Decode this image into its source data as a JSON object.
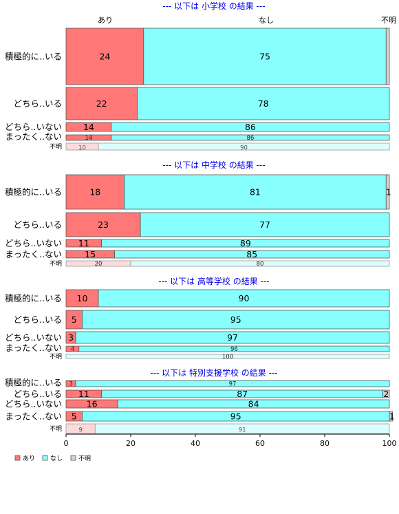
{
  "chart_data": {
    "type": "bar",
    "orientation": "horizontal",
    "stacked": true,
    "legend": {
      "position": "bottom-left",
      "items": [
        {
          "label": "あり",
          "color": "#ff7777"
        },
        {
          "label": "なし",
          "color": "#88ffff"
        },
        {
          "label": "不明",
          "color": "#d3d3d3"
        }
      ]
    },
    "column_labels": [
      "あり",
      "なし",
      "不明"
    ],
    "xlim": [
      0,
      100
    ],
    "xticks": [
      0,
      20,
      40,
      60,
      80,
      100
    ],
    "grid": false,
    "panels": [
      {
        "title": "--- 以下は 小学校 の結果 ---",
        "rows": [
          {
            "label": "積極的に..いる",
            "values": [
              24,
              75,
              1
            ],
            "labels": [
              "24",
              "75",
              ""
            ]
          },
          {
            "label": "どちら..いる",
            "values": [
              22,
              78,
              0
            ],
            "labels": [
              "22",
              "78",
              ""
            ]
          },
          {
            "label": "どちら..いない",
            "values": [
              14,
              86,
              0
            ],
            "labels": [
              "14",
              "86",
              ""
            ]
          },
          {
            "label": "まったく..ない",
            "values": [
              14,
              86,
              0
            ],
            "labels": [
              "14",
              "86",
              ""
            ]
          },
          {
            "label": "不明",
            "values": [
              10,
              90,
              0
            ],
            "labels": [
              "10",
              "90",
              ""
            ],
            "faded": true
          }
        ]
      },
      {
        "title": "--- 以下は 中学校 の結果 ---",
        "rows": [
          {
            "label": "積極的に..いる",
            "values": [
              18,
              81,
              1
            ],
            "labels": [
              "18",
              "81",
              "1"
            ]
          },
          {
            "label": "どちら..いる",
            "values": [
              23,
              77,
              0
            ],
            "labels": [
              "23",
              "77",
              ""
            ]
          },
          {
            "label": "どちら..いない",
            "values": [
              11,
              89,
              0
            ],
            "labels": [
              "11",
              "89",
              ""
            ]
          },
          {
            "label": "まったく..ない",
            "values": [
              15,
              85,
              0
            ],
            "labels": [
              "15",
              "85",
              ""
            ]
          },
          {
            "label": "不明",
            "values": [
              20,
              80,
              0
            ],
            "labels": [
              "20",
              "80",
              ""
            ],
            "faded": true
          }
        ]
      },
      {
        "title": "--- 以下は 高等学校 の結果 ---",
        "rows": [
          {
            "label": "積極的に..いる",
            "values": [
              10,
              90,
              0
            ],
            "labels": [
              "10",
              "90",
              ""
            ]
          },
          {
            "label": "どちら..いる",
            "values": [
              5,
              95,
              0
            ],
            "labels": [
              "5",
              "95",
              ""
            ]
          },
          {
            "label": "どちら..いない",
            "values": [
              3,
              97,
              0
            ],
            "labels": [
              "3",
              "97",
              ""
            ]
          },
          {
            "label": "まったく..ない",
            "values": [
              4,
              96,
              0
            ],
            "labels": [
              "4",
              "96",
              ""
            ]
          },
          {
            "label": "不明",
            "values": [
              0,
              100,
              0
            ],
            "labels": [
              "",
              "100",
              ""
            ],
            "faded": true
          }
        ]
      },
      {
        "title": "--- 以下は 特別支援学校 の結果 ---",
        "rows": [
          {
            "label": "積極的に..いる",
            "values": [
              3,
              97,
              0
            ],
            "labels": [
              "3",
              "97",
              ""
            ]
          },
          {
            "label": "どちら..いる",
            "values": [
              11,
              87,
              2
            ],
            "labels": [
              "11",
              "87",
              "2"
            ]
          },
          {
            "label": "どちら..いない",
            "values": [
              16,
              84,
              0
            ],
            "labels": [
              "16",
              "84",
              ""
            ]
          },
          {
            "label": "まったく..ない",
            "values": [
              5,
              95,
              1
            ],
            "labels": [
              "5",
              "95",
              "1"
            ]
          },
          {
            "label": "不明",
            "values": [
              9,
              91,
              0
            ],
            "labels": [
              "9",
              "91",
              ""
            ],
            "faded": true
          }
        ]
      }
    ]
  }
}
